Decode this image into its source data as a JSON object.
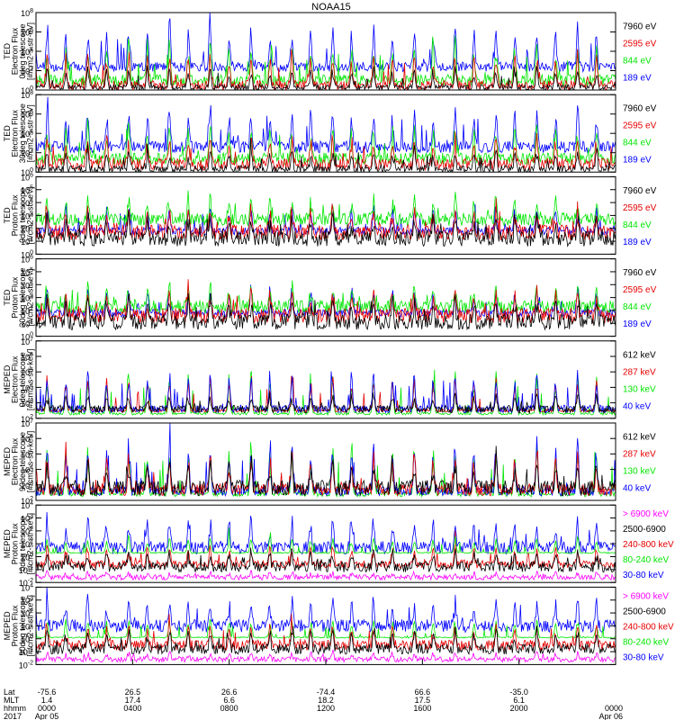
{
  "title": "NOAA15",
  "colors": {
    "black": "#000000",
    "red": "#e60000",
    "green": "#00e600",
    "blue": "#0000ff",
    "magenta": "#ff00ff"
  },
  "chart_data": [
    {
      "type": "line",
      "instrument": "TED",
      "ylabel": [
        "TED",
        "Electron Flux",
        "0deg telescope",
        "[#/cm2-s-str-eV]"
      ],
      "yticks": [
        "10^0",
        "10^2",
        "10^4",
        "10^6",
        "10^8"
      ],
      "ylog": [
        0,
        8
      ],
      "legend": [
        {
          "label": "7960 eV",
          "color": "black"
        },
        {
          "label": "2595 eV",
          "color": "red"
        },
        {
          "label": "844 eV",
          "color": "green"
        },
        {
          "label": "189 eV",
          "color": "blue"
        }
      ],
      "series": [
        {
          "color": "blue",
          "base": 2.4,
          "noise": 0.5,
          "peak": 7.2
        },
        {
          "color": "green",
          "base": 1.0,
          "noise": 0.6,
          "peak": 5.4
        },
        {
          "color": "red",
          "base": 0.5,
          "noise": 0.5,
          "peak": 4.3
        },
        {
          "color": "black",
          "base": 0.25,
          "noise": 0.3,
          "peak": 2.5
        }
      ]
    },
    {
      "type": "line",
      "instrument": "TED",
      "ylabel": [
        "TED",
        "Electron Flux",
        "30deg telescope",
        "[#/cm2-s-str-eV]"
      ],
      "yticks": [
        "10^0",
        "10^2",
        "10^4",
        "10^6",
        "10^8"
      ],
      "ylog": [
        0,
        8
      ],
      "legend": [
        {
          "label": "7960 eV",
          "color": "black"
        },
        {
          "label": "2595 eV",
          "color": "red"
        },
        {
          "label": "844 eV",
          "color": "green"
        },
        {
          "label": "189 eV",
          "color": "blue"
        }
      ],
      "series": [
        {
          "color": "blue",
          "base": 2.6,
          "noise": 0.6,
          "peak": 7.1
        },
        {
          "color": "green",
          "base": 1.4,
          "noise": 0.6,
          "peak": 5.2
        },
        {
          "color": "red",
          "base": 0.8,
          "noise": 0.6,
          "peak": 4.0
        },
        {
          "color": "black",
          "base": 0.3,
          "noise": 0.4,
          "peak": 2.6
        }
      ]
    },
    {
      "type": "line",
      "instrument": "TED",
      "ylabel": [
        "TED",
        "Proton Flux",
        "0deg telescope",
        "[#/cm2-s-str-eV]"
      ],
      "yticks": [
        "10^0",
        "10^1",
        "10^2",
        "10^3",
        "10^4",
        "10^5",
        "10^6"
      ],
      "ylog": [
        0,
        6
      ],
      "legend": [
        {
          "label": "7960 eV",
          "color": "black"
        },
        {
          "label": "2595 eV",
          "color": "red"
        },
        {
          "label": "844 eV",
          "color": "green"
        },
        {
          "label": "189 eV",
          "color": "blue"
        }
      ],
      "series": [
        {
          "color": "blue",
          "base": 1.8,
          "noise": 0.3,
          "peak": 4.2
        },
        {
          "color": "green",
          "base": 2.7,
          "noise": 0.5,
          "peak": 4.6
        },
        {
          "color": "red",
          "base": 1.7,
          "noise": 0.6,
          "peak": 3.8
        },
        {
          "color": "black",
          "base": 1.2,
          "noise": 0.6,
          "peak": 3.2
        }
      ]
    },
    {
      "type": "line",
      "instrument": "TED",
      "ylabel": [
        "TED",
        "Proton Flux",
        "30deg telescope",
        "[#/cm2-s-str-eV]"
      ],
      "yticks": [
        "10^0",
        "10^1",
        "10^2",
        "10^3",
        "10^4",
        "10^5",
        "10^6"
      ],
      "ylog": [
        0,
        6
      ],
      "legend": [
        {
          "label": "7960 eV",
          "color": "black"
        },
        {
          "label": "2595 eV",
          "color": "red"
        },
        {
          "label": "844 eV",
          "color": "green"
        },
        {
          "label": "189 eV",
          "color": "blue"
        }
      ],
      "series": [
        {
          "color": "blue",
          "base": 1.8,
          "noise": 0.3,
          "peak": 4.0
        },
        {
          "color": "green",
          "base": 2.3,
          "noise": 0.5,
          "peak": 4.1
        },
        {
          "color": "red",
          "base": 1.6,
          "noise": 0.6,
          "peak": 3.6
        },
        {
          "color": "black",
          "base": 1.1,
          "noise": 0.6,
          "peak": 3.1
        }
      ]
    },
    {
      "type": "line",
      "instrument": "MEPED",
      "ylabel": [
        "MEPED",
        "Electron Flux",
        "0deg telescope",
        "[#/cm2-s-str-keV]"
      ],
      "yticks": [
        "10^2",
        "10^3",
        "10^4",
        "10^5",
        "10^6",
        "10^7"
      ],
      "ylog": [
        2,
        7
      ],
      "legend": [
        {
          "label": "612 keV",
          "color": "black"
        },
        {
          "label": "287 keV",
          "color": "red"
        },
        {
          "label": "130 keV",
          "color": "green"
        },
        {
          "label": "40 keV",
          "color": "blue"
        }
      ],
      "series": [
        {
          "color": "green",
          "base": 2.3,
          "noise": 0.08,
          "peak": 5.3
        },
        {
          "color": "red",
          "base": 2.5,
          "noise": 0.1,
          "peak": 5.0
        },
        {
          "color": "blue",
          "base": 2.6,
          "noise": 0.25,
          "peak": 5.4
        },
        {
          "color": "black",
          "base": 2.6,
          "noise": 0.25,
          "peak": 3.6
        }
      ]
    },
    {
      "type": "line",
      "instrument": "MEPED",
      "ylabel": [
        "MEPED",
        "Electron Flux",
        "90deg telescope",
        "[#/cm2-s-str-keV]"
      ],
      "yticks": [
        "10^2",
        "10^3",
        "10^4",
        "10^5",
        "10^6",
        "10^7"
      ],
      "ylog": [
        2,
        7
      ],
      "legend": [
        {
          "label": "612 keV",
          "color": "black"
        },
        {
          "label": "287 keV",
          "color": "red"
        },
        {
          "label": "130 keV",
          "color": "green"
        },
        {
          "label": "40 keV",
          "color": "blue"
        }
      ],
      "series": [
        {
          "color": "green",
          "base": 2.4,
          "noise": 0.15,
          "peak": 6.0
        },
        {
          "color": "blue",
          "base": 2.6,
          "noise": 0.3,
          "peak": 6.2
        },
        {
          "color": "red",
          "base": 2.7,
          "noise": 0.4,
          "peak": 5.4
        },
        {
          "color": "black",
          "base": 2.8,
          "noise": 0.5,
          "peak": 4.6
        }
      ]
    },
    {
      "type": "line",
      "instrument": "MEPED",
      "ylabel": [
        "MEPED",
        "Proton Flux",
        "0deg telescope",
        "[#/cm2-s-str-keV]"
      ],
      "yticks": [
        "10^-2",
        "10^-1",
        "10^0",
        "10^1",
        "10^2",
        "10^3",
        "10^4"
      ],
      "ylog": [
        -2,
        4
      ],
      "legend": [
        {
          "label": "> 6900 keV",
          "color": "magenta"
        },
        {
          "label": "2500-6900",
          "color": "black"
        },
        {
          "label": "240-800 keV",
          "color": "red"
        },
        {
          "label": "80-240 keV",
          "color": "green"
        },
        {
          "label": "30-80 keV",
          "color": "blue"
        }
      ],
      "series": [
        {
          "color": "blue",
          "base": 0.7,
          "noise": 0.5,
          "peak": 3.2
        },
        {
          "color": "red",
          "base": -0.6,
          "noise": 0.3,
          "peak": 1.0
        },
        {
          "color": "green",
          "base": 0.3,
          "noise": 0.05,
          "peak": 1.7
        },
        {
          "color": "black",
          "base": -0.8,
          "noise": 0.4,
          "peak": 0.6
        },
        {
          "color": "magenta",
          "base": -1.6,
          "noise": 0.2,
          "peak": -1.2
        }
      ]
    },
    {
      "type": "line",
      "instrument": "MEPED",
      "ylabel": [
        "MEPED",
        "Proton Flux",
        "90deg telescope",
        "[#/cm2-s-str-keV]"
      ],
      "yticks": [
        "10^-2",
        "10^-1",
        "10^0",
        "10^1",
        "10^2",
        "10^3",
        "10^4"
      ],
      "ylog": [
        -2,
        4
      ],
      "legend": [
        {
          "label": "> 6900 keV",
          "color": "magenta"
        },
        {
          "label": "2500-6900",
          "color": "black"
        },
        {
          "label": "240-800 keV",
          "color": "red"
        },
        {
          "label": "80-240 keV",
          "color": "green"
        },
        {
          "label": "30-80 keV",
          "color": "blue"
        }
      ],
      "series": [
        {
          "color": "blue",
          "base": 1.0,
          "noise": 0.5,
          "peak": 3.3
        },
        {
          "color": "green",
          "base": 0.1,
          "noise": 0.05,
          "peak": 1.8
        },
        {
          "color": "red",
          "base": -0.5,
          "noise": 0.4,
          "peak": 1.3
        },
        {
          "color": "black",
          "base": -0.8,
          "noise": 0.4,
          "peak": 1.0
        },
        {
          "color": "magenta",
          "base": -1.6,
          "noise": 0.2,
          "peak": -1.0
        }
      ]
    }
  ],
  "x_axis": {
    "row_labels": [
      "Lat",
      "MLT",
      "hhmm",
      "2017"
    ],
    "ticks": [
      {
        "lat": "-75.6",
        "mlt": "1.4",
        "hhmm": "0000",
        "date": "Apr 05"
      },
      {
        "lat": "26.5",
        "mlt": "17.4",
        "hhmm": "0400",
        "date": ""
      },
      {
        "lat": "26.6",
        "mlt": "6.6",
        "hhmm": "0800",
        "date": ""
      },
      {
        "lat": "-74.4",
        "mlt": "18.2",
        "hhmm": "1200",
        "date": ""
      },
      {
        "lat": "66.6",
        "mlt": "17.5",
        "hhmm": "1600",
        "date": ""
      },
      {
        "lat": "-35.0",
        "mlt": "6.1",
        "hhmm": "2000",
        "date": ""
      },
      {
        "lat": "",
        "mlt": "",
        "hhmm": "0000",
        "date": "Apr 06"
      }
    ],
    "passes_per_day": 14.2
  }
}
